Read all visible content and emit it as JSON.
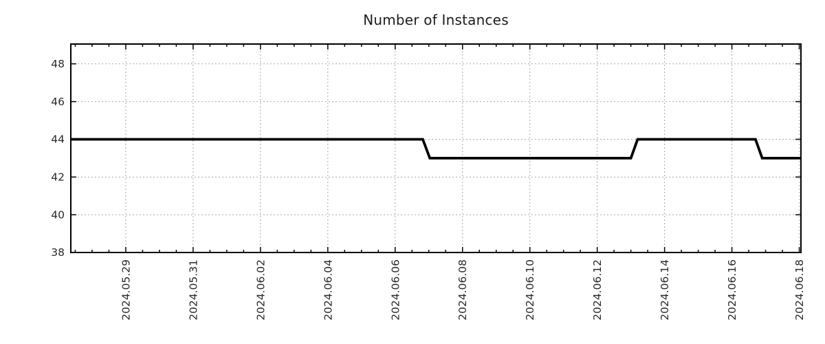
{
  "chart_data": {
    "type": "line",
    "title": "Number of Instances",
    "legend": "none",
    "grid": "dotted",
    "colors": {
      "line": "#000000",
      "grid": "#a6a6a6",
      "border": "#000000",
      "text": "#2a2a2a"
    },
    "x_axis": {
      "label": "",
      "tick_labels": [
        "2024.05.29",
        "2024.05.31",
        "2024.06.02",
        "2024.06.04",
        "2024.06.06",
        "2024.06.08",
        "2024.06.10",
        "2024.06.12",
        "2024.06.14",
        "2024.06.16",
        "2024.06.18"
      ],
      "tick_offsets_days": [
        0,
        2,
        4,
        6,
        8,
        10,
        12,
        14,
        16,
        18,
        20
      ],
      "offsets_unit": "days since 2024.05.29",
      "minor_tick_step_days": 0.5,
      "range_days": [
        -1.632,
        20.05
      ]
    },
    "y_axis": {
      "label": "",
      "ticks": [
        38,
        40,
        42,
        44,
        46,
        48
      ],
      "range": [
        38,
        49.05
      ]
    },
    "series": [
      {
        "name": "Number of Instances",
        "color": "#000000",
        "points_days_value": [
          [
            -1.632,
            44
          ],
          [
            8.82,
            44
          ],
          [
            9.03,
            43
          ],
          [
            15.0,
            43
          ],
          [
            15.2,
            44
          ],
          [
            18.7,
            44
          ],
          [
            18.9,
            43
          ],
          [
            20.05,
            43
          ]
        ]
      }
    ]
  }
}
